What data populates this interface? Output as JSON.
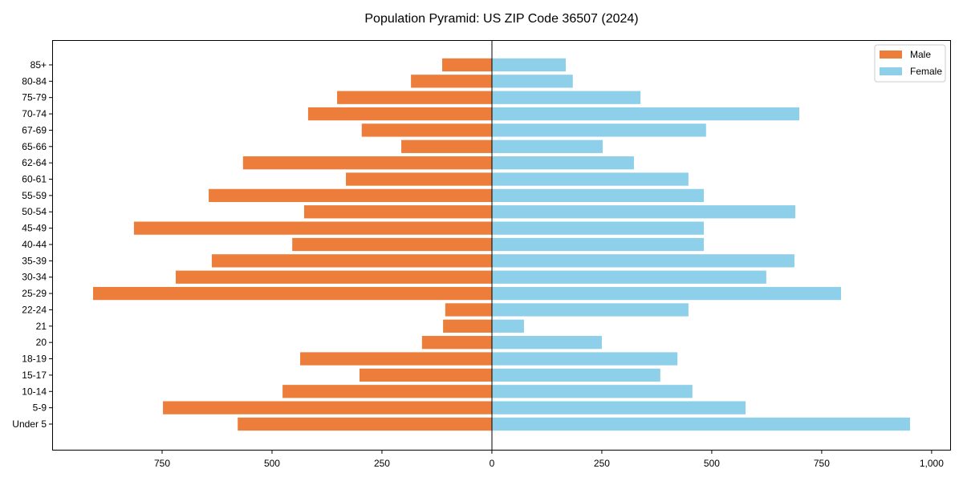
{
  "chart_data": {
    "type": "bar",
    "orientation": "horizontal",
    "title": "Population Pyramid: US ZIP Code 36507 (2024)",
    "xlabel": "",
    "ylabel": "",
    "xlim": [
      -1000,
      1044
    ],
    "xticks": [
      -750,
      -500,
      -250,
      0,
      250,
      500,
      750,
      1000
    ],
    "xtick_labels": [
      "750",
      "500",
      "250",
      "0",
      "250",
      "500",
      "750",
      "1,000"
    ],
    "categories": [
      "Under 5",
      "5-9",
      "10-14",
      "15-17",
      "18-19",
      "20",
      "21",
      "22-24",
      "25-29",
      "30-34",
      "35-39",
      "40-44",
      "45-49",
      "50-54",
      "55-59",
      "60-61",
      "62-64",
      "65-66",
      "67-69",
      "70-74",
      "75-79",
      "80-84",
      "85+"
    ],
    "series": [
      {
        "name": "Male",
        "color": "#ED7D3A",
        "values": [
          578,
          748,
          476,
          301,
          436,
          159,
          111,
          106,
          907,
          719,
          637,
          454,
          814,
          427,
          644,
          332,
          566,
          206,
          296,
          418,
          352,
          184,
          113
        ]
      },
      {
        "name": "Female",
        "color": "#8ECFEA",
        "values": [
          951,
          577,
          456,
          383,
          422,
          250,
          73,
          447,
          794,
          624,
          688,
          482,
          482,
          690,
          482,
          447,
          323,
          252,
          487,
          699,
          338,
          184,
          168
        ]
      }
    ],
    "legend_position": "top-right",
    "grid": false
  }
}
